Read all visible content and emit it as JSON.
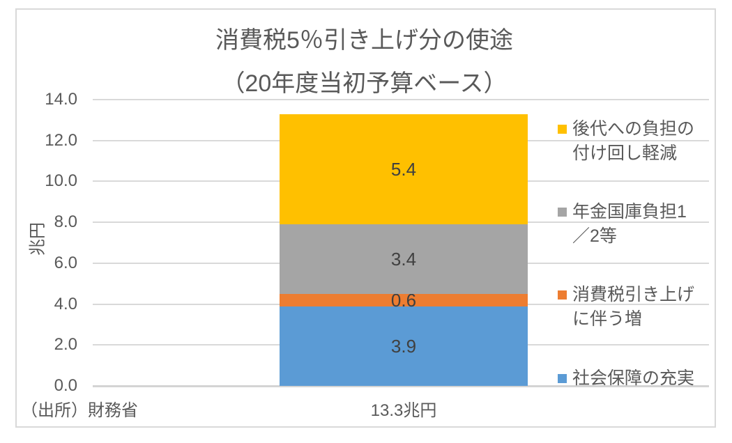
{
  "chart": {
    "source_note": "（出所）財務省"
  },
  "chart_data": {
    "type": "bar",
    "stacked": true,
    "title_line1": "消費税5％引き上げ分の使途",
    "title_line2": "（20年度当初予算ベース）",
    "ylabel": "兆円",
    "ylim": [
      0,
      14
    ],
    "ytick_step": 2,
    "yticks": [
      "14.0",
      "12.0",
      "10.0",
      "8.0",
      "6.0",
      "4.0",
      "2.0",
      "0.0"
    ],
    "grid": true,
    "legend_position": "right",
    "categories": [
      "13.3兆円"
    ],
    "total": 13.3,
    "total_label": "13.3兆円",
    "series": [
      {
        "name": "社会保障の充実",
        "lines": [
          "社会保障の充実"
        ],
        "value": 3.9,
        "label": "3.9",
        "color": "#5B9BD5"
      },
      {
        "name": "消費税引き上げに伴う増",
        "lines": [
          "消費税引き上げ",
          "に伴う増"
        ],
        "value": 0.6,
        "label": "0.6",
        "color": "#ED7D31"
      },
      {
        "name": "年金国庫負担1／2等",
        "lines": [
          "年金国庫負担1",
          "／2等"
        ],
        "value": 3.4,
        "label": "3.4",
        "color": "#A5A5A5"
      },
      {
        "name": "後代への負担の付け回し軽減",
        "lines": [
          "後代への負担の",
          "付け回し軽減"
        ],
        "value": 5.4,
        "label": "5.4",
        "color": "#FFC000"
      }
    ],
    "colors": {
      "text": "#595959",
      "data_label": "#404040",
      "gridline": "#D9D9D9",
      "frame_border": "#D9D9D9"
    }
  }
}
